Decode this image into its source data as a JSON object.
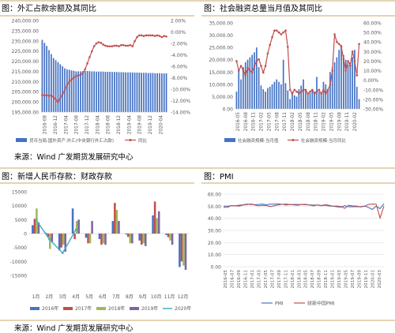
{
  "source_note_1": "来源：Wind  广发期货发展研究中心",
  "source_note_2": "来源：Wind  广发期货发展研究中心",
  "colors": {
    "bar_blue": "#4472c4",
    "line_red": "#c0504d",
    "grid": "#d9d9d9",
    "axis_text": "#595959",
    "pmi_blue": "#4472c4",
    "pmi_red": "#c0504d",
    "fin_2016": "#4472c4",
    "fin_2017": "#c0504d",
    "fin_2018": "#9bbb59",
    "fin_2019": "#8064a2",
    "fin_2020": "#4bacc6"
  },
  "chart_data": [
    {
      "id": "fx",
      "type": "bar",
      "title": "图：外汇占款余额及其同比",
      "y_left_ticks": [
        "240,000.00",
        "235,000.00",
        "230,000.00",
        "225,000.00",
        "220,000.00",
        "215,000.00",
        "210,000.00",
        "205,000.00",
        "200,000.00",
        "195,000.00"
      ],
      "y_right_ticks": [
        "2.00%",
        "0.00%",
        "-2.00%",
        "-4.00%",
        "-6.00%",
        "-8.00%",
        "-10.00%",
        "-12.00%",
        "-14.00%"
      ],
      "ylim_left": [
        195000,
        240000
      ],
      "ylim_right": [
        -14,
        2
      ],
      "x_tick_labels": [
        "2016-08",
        "2016-12",
        "2017-04",
        "2017-08",
        "2017-12",
        "2018-04",
        "2018-08",
        "2018-12",
        "2019-04",
        "2019-08",
        "2019-12",
        "2020-04"
      ],
      "legend": [
        "货币当局:国外资产:外汇(中央银行外汇占款)",
        "同比"
      ],
      "bar_series": [
        230500,
        229000,
        227500,
        225500,
        223500,
        221500,
        220500,
        219500,
        218500,
        217500,
        216500,
        216000,
        215800,
        215500,
        215300,
        215000,
        215000,
        215000,
        215100,
        215200,
        215200,
        215100,
        215000,
        215000,
        214900,
        214900,
        214900,
        214900,
        214800,
        214800,
        214800,
        214700,
        214700,
        214700,
        214600,
        214600,
        214600,
        214500,
        214500,
        214500,
        214500,
        214400,
        214400,
        214400,
        214300,
        214300,
        214300,
        214200,
        214200,
        214200,
        214100,
        214100,
        214100,
        214000,
        214000,
        214000
      ],
      "line_series": [
        -11.0,
        -11.1,
        -11.0,
        -11.2,
        -11.1,
        -11.4,
        -11.8,
        -12.3,
        -11.5,
        -10.9,
        -10.2,
        -9.3,
        -8.7,
        -8.3,
        -8.0,
        -7.7,
        -7.6,
        -7.5,
        -7.2,
        -6.5,
        -5.5,
        -4.4,
        -3.4,
        -2.5,
        -2.0,
        -1.8,
        -1.9,
        -2.2,
        -2.4,
        -2.5,
        -2.5,
        -2.5,
        -2.4,
        -2.4,
        -2.5,
        -2.3,
        -2.3,
        -2.4,
        -2.4,
        -2.3,
        -2.5,
        -1.6,
        -0.9,
        -0.6,
        -0.6,
        -0.7,
        -0.6,
        -0.6,
        -0.6,
        -0.6,
        -0.7,
        -0.6,
        -0.7,
        -0.9,
        -0.7,
        -0.8
      ]
    },
    {
      "id": "tsf",
      "type": "bar",
      "title": "图：社会融资总量当月值及其同比",
      "y_left_ticks": [
        "35,000.00",
        "30,000.00",
        "25,000.00",
        "20,000.00",
        "15,000.00",
        "10,000.00",
        "5,000.00",
        "0.00"
      ],
      "y_right_ticks": [
        "60.00%",
        "50.00%",
        "40.00%",
        "30.00%",
        "20.00%",
        "10.00%",
        "0.00%",
        "-10.00%",
        "-20.00%",
        "-30.00%"
      ],
      "ylim_left": [
        0,
        35000
      ],
      "ylim_right": [
        -30,
        60
      ],
      "x_tick_labels": [
        "2016-05",
        "2016-08",
        "2016-11",
        "2017-02",
        "2017-05",
        "2017-08",
        "2017-11",
        "2018-02",
        "2018-05",
        "2018-08",
        "2018-11",
        "2019-02",
        "2019-05",
        "2019-08",
        "2019-11",
        "2020-02"
      ],
      "legend": [
        "社会融资规模:当月值",
        "社会融资规模:当月同比"
      ],
      "bar_series": [
        7000,
        16000,
        12000,
        17000,
        19000,
        20000,
        21000,
        22000,
        23000,
        25000,
        17000,
        9500,
        8000,
        7000,
        8500,
        9000,
        10000,
        11000,
        12000,
        11000,
        10000,
        20000,
        10500,
        7500,
        4000,
        7000,
        5500,
        5000,
        8000,
        9500,
        12000,
        8000,
        6000,
        6500,
        8000,
        7000,
        13000,
        7000,
        6000,
        11000,
        10000,
        8000,
        15000,
        17000,
        19000,
        21000,
        24000,
        26000,
        22000,
        20000,
        18000,
        19000,
        21000,
        24000,
        9000,
        4000
      ],
      "line_series": [
        20,
        10,
        15,
        10,
        5,
        13,
        10,
        8,
        15,
        20,
        22,
        15,
        8,
        15,
        28,
        37,
        45,
        52,
        52,
        50,
        48,
        50,
        52,
        35,
        -10,
        -14,
        -10,
        -12,
        -14,
        -12,
        -10,
        -10,
        -14,
        -12,
        -10,
        -14,
        -12,
        -10,
        -14,
        -10,
        -14,
        -10,
        -5,
        10,
        48,
        40,
        38,
        35,
        22,
        10,
        20,
        15,
        30,
        20,
        5,
        38
      ]
    },
    {
      "id": "fiscal",
      "type": "bar",
      "title": "图：新增人民币存款：财政存款",
      "y_ticks": [
        "15000",
        "10000",
        "5000",
        "0",
        "-5000",
        "-10000",
        "-15000"
      ],
      "ylim": [
        -15000,
        15000
      ],
      "categories": [
        "1月",
        "2月",
        "3月",
        "4月",
        "5月",
        "6月",
        "7月",
        "8月",
        "9月",
        "10月",
        "11月",
        "12月"
      ],
      "series": [
        {
          "name": "2016年",
          "values": [
            3000,
            300,
            -6000,
            9000,
            -1500,
            -2000,
            4500,
            -300,
            -2500,
            6500,
            -500,
            -12000
          ]
        },
        {
          "name": "2017年",
          "values": [
            5300,
            -1200,
            -5000,
            -2000,
            -3500,
            -4000,
            11000,
            -1200,
            -4000,
            11500,
            -1300,
            -10000
          ]
        },
        {
          "name": "2018年",
          "values": [
            9000,
            -5500,
            -4000,
            4500,
            -3500,
            -3500,
            8500,
            -3500,
            -3500,
            5500,
            -2500,
            -11500
          ]
        },
        {
          "name": "2019年",
          "values": [
            4000,
            -3000,
            -6500,
            5000,
            4500,
            -4000,
            4500,
            -3500,
            -4500,
            8000,
            -4000,
            -13000
          ]
        },
        {
          "name": "2020年",
          "values": [
            5000,
            -2000,
            -7000,
            1500,
            null,
            null,
            null,
            null,
            null,
            null,
            null,
            null
          ]
        }
      ]
    },
    {
      "id": "pmi",
      "type": "line",
      "title": "图：PMI",
      "y_ticks": [
        "60.00",
        "50.00",
        "40.00",
        "30.00",
        "20.00",
        "10.00",
        "0.00"
      ],
      "ylim": [
        0,
        60
      ],
      "x_tick_labels": [
        "2016-05",
        "2016-07",
        "2016-09",
        "2016-11",
        "2017-01",
        "2017-03",
        "2017-05",
        "2017-07",
        "2017-09",
        "2017-11",
        "2018-01",
        "2018-03",
        "2018-05",
        "2018-07",
        "2018-09",
        "2018-11",
        "2019-01",
        "2019-03",
        "2019-05",
        "2019-07",
        "2019-09",
        "2019-11",
        "2020-01",
        "2020-03"
      ],
      "series": [
        {
          "name": "PMI",
          "values": [
            50.1,
            50.0,
            50.4,
            50.4,
            50.8,
            51.2,
            51.7,
            51.4,
            51.3,
            51.4,
            51.8,
            51.2,
            51.7,
            51.7,
            51.9,
            51.6,
            51.7,
            51.3,
            51.5,
            51.4,
            51.4,
            51.2,
            51.1,
            50.9,
            51.0,
            50.4,
            50.8,
            50.2,
            50.0,
            49.5,
            49.2,
            50.5,
            49.5,
            49.6,
            49.7,
            49.6,
            50.2,
            49.1,
            47.3,
            50.0,
            48.0,
            52.0
          ]
        },
        {
          "name": "财新中国PMI",
          "values": [
            49.2,
            49.0,
            50.6,
            50.3,
            50.1,
            51.0,
            51.3,
            51.9,
            51.0,
            50.3,
            50.7,
            50.5,
            49.7,
            50.4,
            51.1,
            51.6,
            51.0,
            51.5,
            51.1,
            50.8,
            51.5,
            51.6,
            51.0,
            50.3,
            51.1,
            50.6,
            51.2,
            50.8,
            50.0,
            50.2,
            49.7,
            48.3,
            50.8,
            50.2,
            50.2,
            49.4,
            49.9,
            51.4,
            51.8,
            51.7,
            40.3,
            50.1
          ]
        }
      ]
    }
  ]
}
